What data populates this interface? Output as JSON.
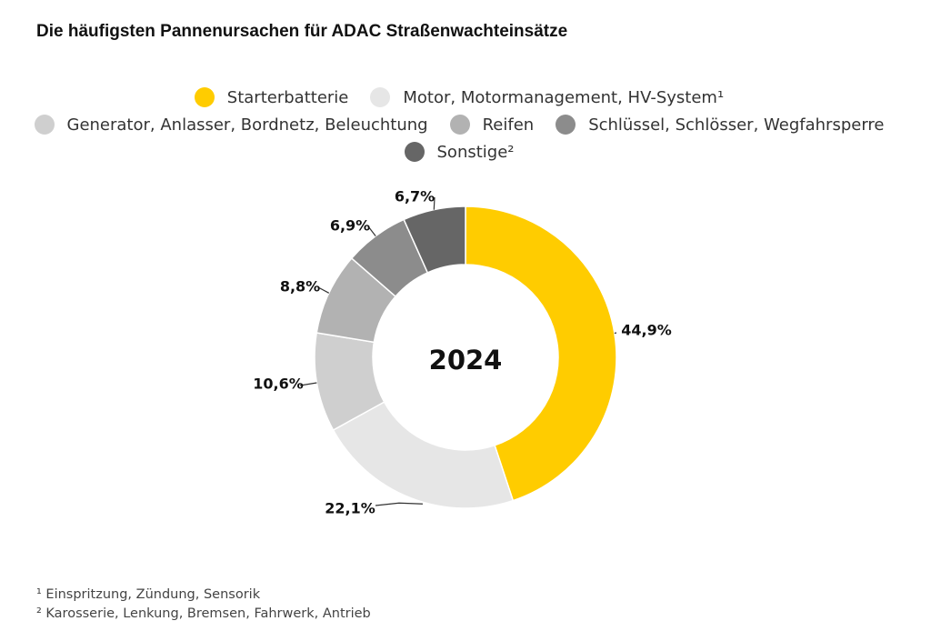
{
  "chart_data": {
    "type": "pie",
    "title": "Die häufigsten Pannenursachen für ADAC Straßenwachteinsätze",
    "center_label": "2024",
    "categories": [
      "Starterbatterie",
      "Motor, Motormanagement, HV-System¹",
      "Generator, Anlasser, Bordnetz, Beleuchtung",
      "Reifen",
      "Schlüssel, Schlösser, Wegfahrsperre",
      "Sonstige²"
    ],
    "values": [
      44.9,
      22.1,
      10.6,
      8.8,
      6.9,
      6.7
    ],
    "value_labels": [
      "44,9%",
      "22,1%",
      "10,6%",
      "8,8%",
      "6,9%",
      "6,7%"
    ],
    "colors": [
      "#ffcc00",
      "#e6e6e6",
      "#cfcfcf",
      "#b2b2b2",
      "#8c8c8c",
      "#666666"
    ],
    "legend_placement": "top"
  },
  "footnotes": [
    "¹ Einspritzung, Zündung, Sensorik",
    "² Karosserie, Lenkung, Bremsen, Fahrwerk, Antrieb"
  ]
}
